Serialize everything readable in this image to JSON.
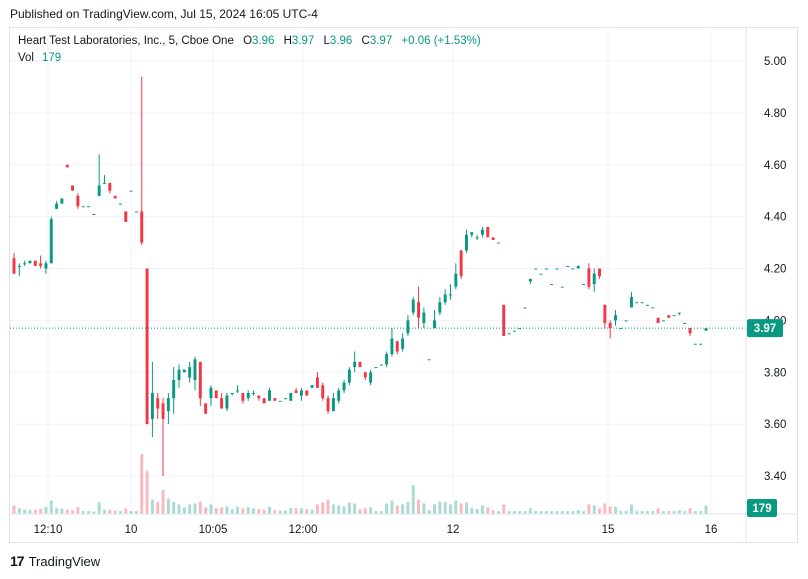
{
  "header": {
    "published": "Published on TradingView.com, Jul 15, 2024 16:05 UTC-4"
  },
  "legend": {
    "symbol": "Heart Test Laboratories, Inc., 5, Cboe One",
    "o_label": "O",
    "o": "3.96",
    "h_label": "H",
    "h": "3.97",
    "l_label": "L",
    "l": "3.96",
    "c_label": "C",
    "c": "3.97",
    "change": "+0.06 (+1.53%)",
    "vol_label": "Vol",
    "vol": "179"
  },
  "footer": {
    "brand": "TradingView",
    "logo": "17"
  },
  "colors": {
    "up": "#089981",
    "down": "#f23645",
    "grid": "#f0f3fa",
    "text": "#131722",
    "price_line": "#089981"
  },
  "chart_data": {
    "type": "candlestick",
    "ylim": [
      3.31,
      5.06
    ],
    "yticks": [
      "5.00",
      "4.80",
      "4.60",
      "4.40",
      "4.20",
      "4.00",
      "3.80",
      "3.60",
      "3.40"
    ],
    "xticks": [
      "12:10",
      "10",
      "10:05",
      "12:00",
      "12",
      "15",
      "16"
    ],
    "last_price": "3.97",
    "last_volume": "179",
    "candles": [
      [
        4.24,
        4.26,
        4.18,
        4.18,
        180
      ],
      [
        4.21,
        4.22,
        4.17,
        4.21,
        120
      ],
      [
        4.22,
        4.23,
        4.21,
        4.22,
        90
      ],
      [
        4.22,
        4.23,
        4.22,
        4.23,
        80
      ],
      [
        4.23,
        4.23,
        4.21,
        4.21,
        90
      ],
      [
        4.22,
        4.25,
        4.2,
        4.21,
        110
      ],
      [
        4.2,
        4.23,
        4.18,
        4.22,
        150
      ],
      [
        4.22,
        4.4,
        4.22,
        4.39,
        280
      ],
      [
        4.43,
        4.46,
        4.43,
        4.45,
        120
      ],
      [
        4.45,
        4.47,
        4.45,
        4.47,
        110
      ],
      [
        4.6,
        4.6,
        4.59,
        4.59,
        90
      ],
      [
        4.52,
        4.52,
        4.5,
        4.5,
        80
      ],
      [
        4.48,
        4.49,
        4.43,
        4.44,
        150
      ],
      [
        4.44,
        4.44,
        4.44,
        4.44,
        60
      ],
      [
        4.44,
        4.44,
        4.44,
        4.44,
        60
      ],
      [
        4.41,
        4.41,
        4.41,
        4.41,
        50
      ],
      [
        4.48,
        4.64,
        4.48,
        4.52,
        250
      ],
      [
        4.53,
        4.56,
        4.53,
        4.53,
        90
      ],
      [
        4.53,
        4.53,
        4.49,
        4.5,
        80
      ],
      [
        4.48,
        4.48,
        4.47,
        4.47,
        70
      ],
      [
        4.45,
        4.45,
        4.45,
        4.45,
        60
      ],
      [
        4.42,
        4.42,
        4.38,
        4.38,
        120
      ],
      [
        4.5,
        4.5,
        4.5,
        4.5,
        60
      ],
      [
        4.42,
        4.42,
        4.42,
        4.42,
        60
      ],
      [
        4.42,
        4.94,
        4.29,
        4.3,
        1250
      ],
      [
        4.2,
        4.2,
        3.6,
        3.6,
        900
      ],
      [
        3.62,
        3.84,
        3.55,
        3.72,
        300
      ],
      [
        3.7,
        3.72,
        3.62,
        3.66,
        250
      ],
      [
        3.68,
        3.7,
        3.4,
        3.62,
        500
      ],
      [
        3.65,
        3.72,
        3.6,
        3.7,
        320
      ],
      [
        3.7,
        3.82,
        3.64,
        3.77,
        250
      ],
      [
        3.77,
        3.83,
        3.74,
        3.81,
        200
      ],
      [
        3.8,
        3.81,
        3.8,
        3.81,
        140
      ],
      [
        3.78,
        3.84,
        3.76,
        3.82,
        200
      ],
      [
        3.77,
        3.86,
        3.73,
        3.85,
        220
      ],
      [
        3.84,
        3.84,
        3.67,
        3.7,
        260
      ],
      [
        3.68,
        3.68,
        3.64,
        3.64,
        140
      ],
      [
        3.7,
        3.75,
        3.67,
        3.74,
        200
      ],
      [
        3.73,
        3.73,
        3.7,
        3.7,
        120
      ],
      [
        3.7,
        3.72,
        3.66,
        3.66,
        140
      ],
      [
        3.66,
        3.72,
        3.65,
        3.71,
        160
      ],
      [
        3.72,
        3.72,
        3.71,
        3.72,
        100
      ],
      [
        3.73,
        3.75,
        3.72,
        3.73,
        150
      ],
      [
        3.72,
        3.72,
        3.68,
        3.69,
        120
      ],
      [
        3.7,
        3.73,
        3.69,
        3.72,
        140
      ],
      [
        3.72,
        3.73,
        3.71,
        3.72,
        120
      ],
      [
        3.71,
        3.71,
        3.69,
        3.7,
        100
      ],
      [
        3.7,
        3.7,
        3.68,
        3.68,
        90
      ],
      [
        3.69,
        3.74,
        3.69,
        3.73,
        150
      ],
      [
        3.7,
        3.7,
        3.69,
        3.69,
        80
      ],
      [
        3.69,
        3.69,
        3.69,
        3.69,
        70
      ],
      [
        3.7,
        3.7,
        3.7,
        3.7,
        70
      ],
      [
        3.69,
        3.72,
        3.69,
        3.72,
        130
      ],
      [
        3.73,
        3.74,
        3.72,
        3.72,
        120
      ],
      [
        3.71,
        3.74,
        3.69,
        3.73,
        120
      ],
      [
        3.73,
        3.73,
        3.71,
        3.71,
        100
      ],
      [
        3.74,
        3.75,
        3.74,
        3.75,
        90
      ],
      [
        3.78,
        3.8,
        3.74,
        3.74,
        200
      ],
      [
        3.75,
        3.76,
        3.69,
        3.7,
        240
      ],
      [
        3.7,
        3.71,
        3.64,
        3.65,
        300
      ],
      [
        3.65,
        3.72,
        3.65,
        3.7,
        200
      ],
      [
        3.69,
        3.74,
        3.68,
        3.73,
        180
      ],
      [
        3.73,
        3.77,
        3.72,
        3.76,
        160
      ],
      [
        3.76,
        3.82,
        3.75,
        3.81,
        240
      ],
      [
        3.82,
        3.88,
        3.8,
        3.84,
        220
      ],
      [
        3.84,
        3.84,
        3.82,
        3.82,
        100
      ],
      [
        3.8,
        3.8,
        3.77,
        3.78,
        120
      ],
      [
        3.76,
        3.81,
        3.75,
        3.8,
        140
      ],
      [
        3.82,
        3.82,
        3.82,
        3.82,
        60
      ],
      [
        3.83,
        3.83,
        3.83,
        3.83,
        60
      ],
      [
        3.83,
        3.88,
        3.82,
        3.87,
        220
      ],
      [
        3.87,
        3.97,
        3.86,
        3.93,
        280
      ],
      [
        3.92,
        3.92,
        3.87,
        3.88,
        180
      ],
      [
        3.89,
        3.95,
        3.88,
        3.93,
        200
      ],
      [
        3.95,
        4.02,
        3.94,
        4.0,
        250
      ],
      [
        4.03,
        4.09,
        4.02,
        4.08,
        600
      ],
      [
        4.07,
        4.13,
        3.97,
        4.01,
        300
      ],
      [
        3.99,
        4.05,
        3.97,
        4.03,
        220
      ],
      [
        3.85,
        3.85,
        3.85,
        3.85,
        80
      ],
      [
        3.97,
        4.04,
        3.97,
        4.0,
        200
      ],
      [
        4.03,
        4.09,
        4.02,
        4.07,
        260
      ],
      [
        4.07,
        4.12,
        4.06,
        4.1,
        250
      ],
      [
        4.1,
        4.14,
        4.08,
        4.1,
        200
      ],
      [
        4.13,
        4.22,
        4.12,
        4.18,
        280
      ],
      [
        4.27,
        4.27,
        4.16,
        4.17,
        220
      ],
      [
        4.27,
        4.35,
        4.26,
        4.33,
        240
      ],
      [
        4.33,
        4.34,
        4.32,
        4.34,
        120
      ],
      [
        4.32,
        4.33,
        4.31,
        4.32,
        100
      ],
      [
        4.33,
        4.36,
        4.32,
        4.35,
        180
      ],
      [
        4.36,
        4.36,
        4.32,
        4.32,
        140
      ],
      [
        4.32,
        4.32,
        4.31,
        4.31,
        80
      ],
      [
        4.3,
        4.3,
        4.3,
        4.3,
        60
      ],
      [
        4.06,
        4.06,
        3.94,
        3.94,
        200
      ],
      [
        3.95,
        3.95,
        3.95,
        3.95,
        60
      ],
      [
        3.96,
        3.96,
        3.96,
        3.96,
        60
      ],
      [
        3.97,
        3.97,
        3.97,
        3.97,
        60
      ],
      [
        4.05,
        4.05,
        4.05,
        4.05,
        60
      ],
      [
        4.15,
        4.16,
        4.14,
        4.16,
        120
      ],
      [
        4.2,
        4.2,
        4.2,
        4.2,
        60
      ],
      [
        4.18,
        4.18,
        4.18,
        4.18,
        60
      ],
      [
        4.2,
        4.2,
        4.2,
        4.2,
        60
      ],
      [
        4.14,
        4.14,
        4.14,
        4.14,
        60
      ],
      [
        4.2,
        4.2,
        4.2,
        4.2,
        60
      ],
      [
        4.13,
        4.13,
        4.13,
        4.13,
        60
      ],
      [
        4.21,
        4.21,
        4.21,
        4.21,
        60
      ],
      [
        4.2,
        4.2,
        4.2,
        4.2,
        60
      ],
      [
        4.2,
        4.21,
        4.2,
        4.21,
        80
      ],
      [
        4.14,
        4.14,
        4.14,
        4.14,
        60
      ],
      [
        4.2,
        4.22,
        4.12,
        4.13,
        200
      ],
      [
        4.14,
        4.2,
        4.11,
        4.18,
        180
      ],
      [
        4.2,
        4.2,
        4.16,
        4.17,
        120
      ],
      [
        4.06,
        4.06,
        3.97,
        3.99,
        220
      ],
      [
        3.99,
        4.0,
        3.93,
        3.97,
        160
      ],
      [
        4.0,
        4.04,
        3.98,
        4.02,
        150
      ],
      [
        3.97,
        3.97,
        3.97,
        3.97,
        60
      ],
      [
        4.0,
        4.0,
        4.0,
        4.0,
        60
      ],
      [
        4.05,
        4.11,
        4.05,
        4.09,
        200
      ],
      [
        4.07,
        4.07,
        4.07,
        4.07,
        60
      ],
      [
        4.07,
        4.07,
        4.07,
        4.07,
        60
      ],
      [
        4.06,
        4.06,
        4.06,
        4.06,
        60
      ],
      [
        4.05,
        4.05,
        4.05,
        4.05,
        60
      ],
      [
        4.01,
        4.01,
        3.99,
        3.99,
        120
      ],
      [
        4.0,
        4.0,
        4.0,
        4.0,
        60
      ],
      [
        4.02,
        4.02,
        4.01,
        4.01,
        60
      ],
      [
        4.02,
        4.02,
        4.02,
        4.02,
        60
      ],
      [
        4.03,
        4.03,
        4.02,
        4.03,
        80
      ],
      [
        3.99,
        3.99,
        3.99,
        3.99,
        60
      ],
      [
        3.97,
        3.97,
        3.94,
        3.95,
        120
      ],
      [
        3.91,
        3.91,
        3.91,
        3.91,
        60
      ],
      [
        3.91,
        3.91,
        3.91,
        3.91,
        60
      ],
      [
        3.96,
        3.97,
        3.96,
        3.97,
        179
      ]
    ]
  }
}
